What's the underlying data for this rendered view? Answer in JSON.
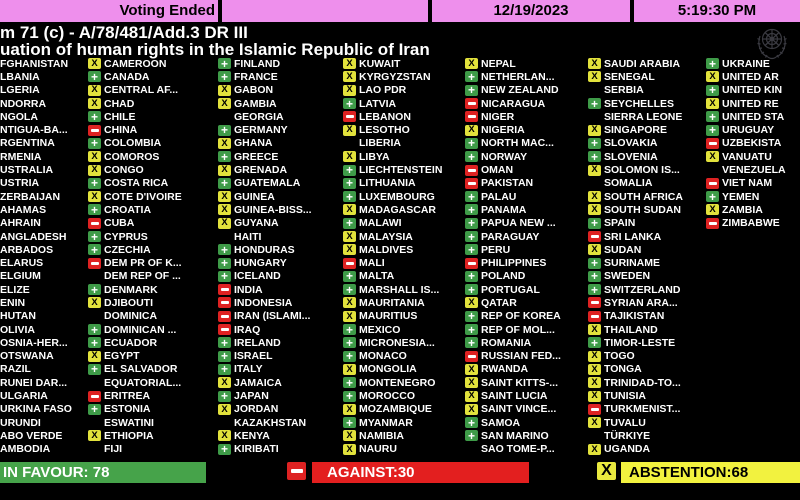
{
  "topbar": {
    "status": "Voting Ended",
    "date": "12/19/2023",
    "time": "5:19:30 PM"
  },
  "title": {
    "line1": "m 71 (c) - A/78/481/Add.3 DR III",
    "line2": "uation of human rights in the Islamic Republic of Iran"
  },
  "colors": {
    "topbar_pink": "#EE8FEC",
    "favour_green": "#3E9B48",
    "against_red": "#DE2222",
    "abstention_yellow": "#E2E23C"
  },
  "icons": {
    "favour": "green-plus-icon",
    "against": "red-minus-icon",
    "abstention": "yellow-x-icon",
    "emblem": "un-emblem-icon"
  },
  "summary": {
    "favour_label": "IN FAVOUR: 78",
    "against_label": "AGAINST:30",
    "abstention_label": "ABSTENTION:68"
  },
  "board": {
    "columns": [
      [
        {
          "name": "FGHANISTAN",
          "vote": null
        },
        {
          "name": "LBANIA",
          "vote": null
        },
        {
          "name": "LGERIA",
          "vote": null
        },
        {
          "name": "NDORRA",
          "vote": null
        },
        {
          "name": "NGOLA",
          "vote": null
        },
        {
          "name": "NTIGUA-BA...",
          "vote": null
        },
        {
          "name": "RGENTINA",
          "vote": null
        },
        {
          "name": "RMENIA",
          "vote": null
        },
        {
          "name": "USTRALIA",
          "vote": null
        },
        {
          "name": "USTRIA",
          "vote": null
        },
        {
          "name": "ZERBAIJAN",
          "vote": null
        },
        {
          "name": "AHAMAS",
          "vote": null
        },
        {
          "name": "AHRAIN",
          "vote": null
        },
        {
          "name": "ANGLADESH",
          "vote": null
        },
        {
          "name": "ARBADOS",
          "vote": null
        },
        {
          "name": "ELARUS",
          "vote": null
        },
        {
          "name": "ELGIUM",
          "vote": null
        },
        {
          "name": "ELIZE",
          "vote": null
        },
        {
          "name": "ENIN",
          "vote": null
        },
        {
          "name": "HUTAN",
          "vote": null
        },
        {
          "name": "OLIVIA",
          "vote": null
        },
        {
          "name": "OSNIA-HER...",
          "vote": null
        },
        {
          "name": "OTSWANA",
          "vote": null
        },
        {
          "name": "RAZIL",
          "vote": null
        },
        {
          "name": "RUNEI DAR...",
          "vote": null
        },
        {
          "name": "ULGARIA",
          "vote": null
        },
        {
          "name": "URKINA FASO",
          "vote": null
        },
        {
          "name": "URUNDI",
          "vote": null
        },
        {
          "name": "ABO VERDE",
          "vote": null
        },
        {
          "name": "AMBODIA",
          "vote": null
        }
      ],
      [
        {
          "name": "CAMEROON",
          "vote": "abstain"
        },
        {
          "name": "CANADA",
          "vote": "favour"
        },
        {
          "name": "CENTRAL AF...",
          "vote": "abstain"
        },
        {
          "name": "CHAD",
          "vote": "abstain"
        },
        {
          "name": "CHILE",
          "vote": "favour"
        },
        {
          "name": "CHINA",
          "vote": "against"
        },
        {
          "name": "COLOMBIA",
          "vote": "favour"
        },
        {
          "name": "COMOROS",
          "vote": "abstain"
        },
        {
          "name": "CONGO",
          "vote": "abstain"
        },
        {
          "name": "COSTA RICA",
          "vote": "favour"
        },
        {
          "name": "COTE D'IVOIRE",
          "vote": "abstain"
        },
        {
          "name": "CROATIA",
          "vote": "favour"
        },
        {
          "name": "CUBA",
          "vote": "against"
        },
        {
          "name": "CYPRUS",
          "vote": "favour"
        },
        {
          "name": "CZECHIA",
          "vote": "favour"
        },
        {
          "name": "DEM PR OF K...",
          "vote": "against"
        },
        {
          "name": "DEM REP OF ...",
          "vote": null
        },
        {
          "name": "DENMARK",
          "vote": "favour"
        },
        {
          "name": "DJIBOUTI",
          "vote": "abstain"
        },
        {
          "name": "DOMINICA",
          "vote": null
        },
        {
          "name": "DOMINICAN ...",
          "vote": "favour"
        },
        {
          "name": "ECUADOR",
          "vote": "favour"
        },
        {
          "name": "EGYPT",
          "vote": "abstain"
        },
        {
          "name": "EL SALVADOR",
          "vote": "favour"
        },
        {
          "name": "EQUATORIAL...",
          "vote": null
        },
        {
          "name": "ERITREA",
          "vote": "against"
        },
        {
          "name": "ESTONIA",
          "vote": "favour"
        },
        {
          "name": "ESWATINI",
          "vote": null
        },
        {
          "name": "ETHIOPIA",
          "vote": "abstain"
        },
        {
          "name": "FIJI",
          "vote": null
        }
      ],
      [
        {
          "name": "FINLAND",
          "vote": "favour"
        },
        {
          "name": "FRANCE",
          "vote": "favour"
        },
        {
          "name": "GABON",
          "vote": "abstain"
        },
        {
          "name": "GAMBIA",
          "vote": "abstain"
        },
        {
          "name": "GEORGIA",
          "vote": null
        },
        {
          "name": "GERMANY",
          "vote": "favour"
        },
        {
          "name": "GHANA",
          "vote": "abstain"
        },
        {
          "name": "GREECE",
          "vote": "favour"
        },
        {
          "name": "GRENADA",
          "vote": "abstain"
        },
        {
          "name": "GUATEMALA",
          "vote": "favour"
        },
        {
          "name": "GUINEA",
          "vote": "abstain"
        },
        {
          "name": "GUINEA-BISS...",
          "vote": "abstain"
        },
        {
          "name": "GUYANA",
          "vote": "abstain"
        },
        {
          "name": "HAITI",
          "vote": null
        },
        {
          "name": "HONDURAS",
          "vote": "favour"
        },
        {
          "name": "HUNGARY",
          "vote": "favour"
        },
        {
          "name": "ICELAND",
          "vote": "favour"
        },
        {
          "name": "INDIA",
          "vote": "against"
        },
        {
          "name": "INDONESIA",
          "vote": "against"
        },
        {
          "name": "IRAN (ISLAMI...",
          "vote": "against"
        },
        {
          "name": "IRAQ",
          "vote": "against"
        },
        {
          "name": "IRELAND",
          "vote": "favour"
        },
        {
          "name": "ISRAEL",
          "vote": "favour"
        },
        {
          "name": "ITALY",
          "vote": "favour"
        },
        {
          "name": "JAMAICA",
          "vote": "abstain"
        },
        {
          "name": "JAPAN",
          "vote": "favour"
        },
        {
          "name": "JORDAN",
          "vote": "abstain"
        },
        {
          "name": "KAZAKHSTAN",
          "vote": null
        },
        {
          "name": "KENYA",
          "vote": "abstain"
        },
        {
          "name": "KIRIBATI",
          "vote": "favour"
        }
      ],
      [
        {
          "name": "KUWAIT",
          "vote": "abstain"
        },
        {
          "name": "KYRGYZSTAN",
          "vote": "abstain"
        },
        {
          "name": "LAO PDR",
          "vote": "abstain"
        },
        {
          "name": "LATVIA",
          "vote": "favour"
        },
        {
          "name": "LEBANON",
          "vote": "against"
        },
        {
          "name": "LESOTHO",
          "vote": "abstain"
        },
        {
          "name": "LIBERIA",
          "vote": null
        },
        {
          "name": "LIBYA",
          "vote": "abstain"
        },
        {
          "name": "LIECHTENSTEIN",
          "vote": "favour"
        },
        {
          "name": "LITHUANIA",
          "vote": "favour"
        },
        {
          "name": "LUXEMBOURG",
          "vote": "favour"
        },
        {
          "name": "MADAGASCAR",
          "vote": "abstain"
        },
        {
          "name": "MALAWI",
          "vote": "favour"
        },
        {
          "name": "MALAYSIA",
          "vote": "abstain"
        },
        {
          "name": "MALDIVES",
          "vote": "abstain"
        },
        {
          "name": "MALI",
          "vote": "against"
        },
        {
          "name": "MALTA",
          "vote": "favour"
        },
        {
          "name": "MARSHALL IS...",
          "vote": "favour"
        },
        {
          "name": "MAURITANIA",
          "vote": "abstain"
        },
        {
          "name": "MAURITIUS",
          "vote": "abstain"
        },
        {
          "name": "MEXICO",
          "vote": "favour"
        },
        {
          "name": "MICRONESIA...",
          "vote": "favour"
        },
        {
          "name": "MONACO",
          "vote": "favour"
        },
        {
          "name": "MONGOLIA",
          "vote": "abstain"
        },
        {
          "name": "MONTENEGRO",
          "vote": "favour"
        },
        {
          "name": "MOROCCO",
          "vote": "favour"
        },
        {
          "name": "MOZAMBIQUE",
          "vote": "abstain"
        },
        {
          "name": "MYANMAR",
          "vote": "favour"
        },
        {
          "name": "NAMIBIA",
          "vote": "abstain"
        },
        {
          "name": "NAURU",
          "vote": "abstain"
        }
      ],
      [
        {
          "name": "NEPAL",
          "vote": "abstain"
        },
        {
          "name": "NETHERLAN...",
          "vote": "favour"
        },
        {
          "name": "NEW ZEALAND",
          "vote": "favour"
        },
        {
          "name": "NICARAGUA",
          "vote": "against"
        },
        {
          "name": "NIGER",
          "vote": "against"
        },
        {
          "name": "NIGERIA",
          "vote": "abstain"
        },
        {
          "name": "NORTH MAC...",
          "vote": "favour"
        },
        {
          "name": "NORWAY",
          "vote": "favour"
        },
        {
          "name": "OMAN",
          "vote": "against"
        },
        {
          "name": "PAKISTAN",
          "vote": "against"
        },
        {
          "name": "PALAU",
          "vote": "favour"
        },
        {
          "name": "PANAMA",
          "vote": "favour"
        },
        {
          "name": "PAPUA NEW ...",
          "vote": "favour"
        },
        {
          "name": "PARAGUAY",
          "vote": "favour"
        },
        {
          "name": "PERU",
          "vote": "favour"
        },
        {
          "name": "PHILIPPINES",
          "vote": "against"
        },
        {
          "name": "POLAND",
          "vote": "favour"
        },
        {
          "name": "PORTUGAL",
          "vote": "favour"
        },
        {
          "name": "QATAR",
          "vote": "abstain"
        },
        {
          "name": "REP OF KOREA",
          "vote": "favour"
        },
        {
          "name": "REP OF MOL...",
          "vote": "favour"
        },
        {
          "name": "ROMANIA",
          "vote": "favour"
        },
        {
          "name": "RUSSIAN FED...",
          "vote": "against"
        },
        {
          "name": "RWANDA",
          "vote": "abstain"
        },
        {
          "name": "SAINT KITTS-...",
          "vote": "abstain"
        },
        {
          "name": "SAINT LUCIA",
          "vote": "abstain"
        },
        {
          "name": "SAINT VINCE...",
          "vote": "abstain"
        },
        {
          "name": "SAMOA",
          "vote": "favour"
        },
        {
          "name": "SAN MARINO",
          "vote": "favour"
        },
        {
          "name": "SAO TOME-P...",
          "vote": null
        }
      ],
      [
        {
          "name": "SAUDI ARABIA",
          "vote": "abstain"
        },
        {
          "name": "SENEGAL",
          "vote": "abstain"
        },
        {
          "name": "SERBIA",
          "vote": null
        },
        {
          "name": "SEYCHELLES",
          "vote": "favour"
        },
        {
          "name": "SIERRA LEONE",
          "vote": null
        },
        {
          "name": "SINGAPORE",
          "vote": "abstain"
        },
        {
          "name": "SLOVAKIA",
          "vote": "favour"
        },
        {
          "name": "SLOVENIA",
          "vote": "favour"
        },
        {
          "name": "SOLOMON IS...",
          "vote": "abstain"
        },
        {
          "name": "SOMALIA",
          "vote": null
        },
        {
          "name": "SOUTH AFRICA",
          "vote": "abstain"
        },
        {
          "name": "SOUTH SUDAN",
          "vote": "abstain"
        },
        {
          "name": "SPAIN",
          "vote": "favour"
        },
        {
          "name": "SRI LANKA",
          "vote": "against"
        },
        {
          "name": "SUDAN",
          "vote": "abstain"
        },
        {
          "name": "SURINAME",
          "vote": "favour"
        },
        {
          "name": "SWEDEN",
          "vote": "favour"
        },
        {
          "name": "SWITZERLAND",
          "vote": "favour"
        },
        {
          "name": "SYRIAN ARA...",
          "vote": "against"
        },
        {
          "name": "TAJIKISTAN",
          "vote": "against"
        },
        {
          "name": "THAILAND",
          "vote": "abstain"
        },
        {
          "name": "TIMOR-LESTE",
          "vote": "favour"
        },
        {
          "name": "TOGO",
          "vote": "abstain"
        },
        {
          "name": "TONGA",
          "vote": "abstain"
        },
        {
          "name": "TRINIDAD-TO...",
          "vote": "abstain"
        },
        {
          "name": "TUNISIA",
          "vote": "abstain"
        },
        {
          "name": "TURKMENIST...",
          "vote": "against"
        },
        {
          "name": "TUVALU",
          "vote": "abstain"
        },
        {
          "name": "TÜRKIYE",
          "vote": null
        },
        {
          "name": "UGANDA",
          "vote": "abstain"
        }
      ],
      [
        {
          "name": "UKRAINE",
          "vote": "favour"
        },
        {
          "name": "UNITED AR",
          "vote": "abstain"
        },
        {
          "name": "UNITED KIN",
          "vote": "favour"
        },
        {
          "name": "UNITED RE",
          "vote": "abstain"
        },
        {
          "name": "UNITED STA",
          "vote": "favour"
        },
        {
          "name": "URUGUAY",
          "vote": "favour"
        },
        {
          "name": "UZBEKISTA",
          "vote": "against"
        },
        {
          "name": "VANUATU",
          "vote": "abstain"
        },
        {
          "name": "VENEZUELA",
          "vote": null
        },
        {
          "name": "VIET NAM",
          "vote": "against"
        },
        {
          "name": "YEMEN",
          "vote": "favour"
        },
        {
          "name": "ZAMBIA",
          "vote": "abstain"
        },
        {
          "name": "ZIMBABWE",
          "vote": "against"
        }
      ]
    ]
  }
}
